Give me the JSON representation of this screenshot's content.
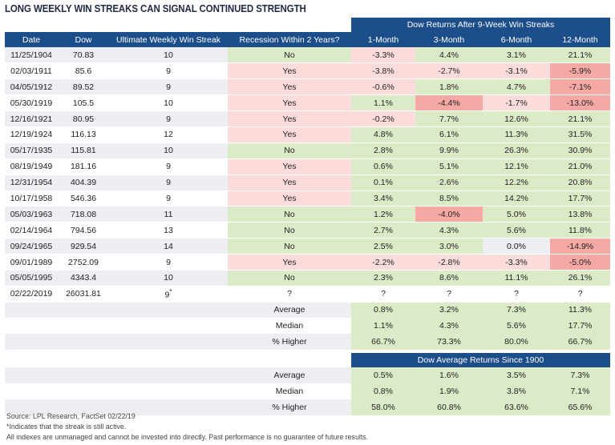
{
  "title": "LONG WEEKLY WIN STREAKS CAN SIGNAL CONTINUED STRENGTH",
  "group_header": "Dow Returns After 9-Week Win Streaks",
  "columns": [
    "Date",
    "Dow",
    "Ultimate Weekly Win Streak",
    "Recession Within 2 Years?",
    "1-Month",
    "3-Month",
    "6-Month",
    "12-Month"
  ],
  "rows": [
    {
      "date": "11/25/1904",
      "dow": "70.83",
      "streak": "10",
      "recession": "No",
      "m1": "-3.3%",
      "m3": "4.4%",
      "m6": "3.1%",
      "m12": "21.1%"
    },
    {
      "date": "02/03/1911",
      "dow": "85.6",
      "streak": "9",
      "recession": "Yes",
      "m1": "-3.8%",
      "m3": "-2.7%",
      "m6": "-3.1%",
      "m12": "-5.9%"
    },
    {
      "date": "04/05/1912",
      "dow": "89.52",
      "streak": "9",
      "recession": "Yes",
      "m1": "-0.6%",
      "m3": "1.8%",
      "m6": "4.7%",
      "m12": "-7.1%"
    },
    {
      "date": "05/30/1919",
      "dow": "105.5",
      "streak": "10",
      "recession": "Yes",
      "m1": "1.1%",
      "m3": "-4.4%",
      "m6": "-1.7%",
      "m12": "-13.0%"
    },
    {
      "date": "12/16/1921",
      "dow": "80.95",
      "streak": "9",
      "recession": "Yes",
      "m1": "-0.2%",
      "m3": "7.7%",
      "m6": "12.6%",
      "m12": "21.1%"
    },
    {
      "date": "12/19/1924",
      "dow": "116.13",
      "streak": "12",
      "recession": "Yes",
      "m1": "4.8%",
      "m3": "6.1%",
      "m6": "11.3%",
      "m12": "31.5%"
    },
    {
      "date": "05/17/1935",
      "dow": "115.81",
      "streak": "10",
      "recession": "No",
      "m1": "2.8%",
      "m3": "9.9%",
      "m6": "26.3%",
      "m12": "30.9%"
    },
    {
      "date": "08/19/1949",
      "dow": "181.16",
      "streak": "9",
      "recession": "Yes",
      "m1": "0.6%",
      "m3": "5.1%",
      "m6": "12.1%",
      "m12": "21.0%"
    },
    {
      "date": "12/31/1954",
      "dow": "404.39",
      "streak": "9",
      "recession": "Yes",
      "m1": "0.1%",
      "m3": "2.6%",
      "m6": "12.2%",
      "m12": "20.8%"
    },
    {
      "date": "10/17/1958",
      "dow": "546.36",
      "streak": "9",
      "recession": "Yes",
      "m1": "3.4%",
      "m3": "8.5%",
      "m6": "14.2%",
      "m12": "17.7%"
    },
    {
      "date": "05/03/1963",
      "dow": "718.08",
      "streak": "11",
      "recession": "No",
      "m1": "1.2%",
      "m3": "-4.0%",
      "m6": "5.0%",
      "m12": "13.8%"
    },
    {
      "date": "02/14/1964",
      "dow": "794.56",
      "streak": "13",
      "recession": "No",
      "m1": "2.7%",
      "m3": "4.3%",
      "m6": "5.6%",
      "m12": "11.8%"
    },
    {
      "date": "09/24/1965",
      "dow": "929.54",
      "streak": "14",
      "recession": "No",
      "m1": "2.5%",
      "m3": "3.0%",
      "m6": "0.0%",
      "m12": "-14.9%"
    },
    {
      "date": "09/01/1989",
      "dow": "2752.09",
      "streak": "9",
      "recession": "Yes",
      "m1": "-2.2%",
      "m3": "-2.8%",
      "m6": "-3.3%",
      "m12": "-5.0%"
    },
    {
      "date": "05/05/1995",
      "dow": "4343.4",
      "streak": "10",
      "recession": "No",
      "m1": "2.3%",
      "m3": "8.6%",
      "m6": "11.1%",
      "m12": "26.1%"
    },
    {
      "date": "02/22/2019",
      "dow": "26031.81",
      "streak": "9",
      "streak_mark": "*",
      "recession": "?",
      "m1": "?",
      "m3": "?",
      "m6": "?",
      "m12": "?"
    }
  ],
  "stats_streak": [
    {
      "label": "Average",
      "m1": "0.8%",
      "m3": "3.2%",
      "m6": "7.3%",
      "m12": "11.3%"
    },
    {
      "label": "Median",
      "m1": "1.1%",
      "m3": "4.3%",
      "m6": "5.6%",
      "m12": "17.7%"
    },
    {
      "label": "% Higher",
      "m1": "66.7%",
      "m3": "73.3%",
      "m6": "80.0%",
      "m12": "66.7%"
    }
  ],
  "since_header": "Dow Average Returns Since 1900",
  "stats_since": [
    {
      "label": "Average",
      "m1": "0.5%",
      "m3": "1.6%",
      "m6": "3.5%",
      "m12": "7.3%"
    },
    {
      "label": "Median",
      "m1": "0.8%",
      "m3": "1.9%",
      "m6": "3.8%",
      "m12": "7.1%"
    },
    {
      "label": "% Higher",
      "m1": "58.0%",
      "m3": "60.8%",
      "m6": "63.6%",
      "m12": "65.6%"
    }
  ],
  "footnotes": {
    "source": "Source: LPL Research, FactSet   02/22/19",
    "asterisk": "*Indicates that the streak is still active.",
    "disclaimer": "All indexes are unmanaged and cannot be invested into directly. Past performance is no guarantee of future results."
  },
  "colors": {
    "header": "#1c4e8a",
    "positive": "#dcebc7",
    "negative_light": "#fcdcda",
    "negative_strong": "#f6a8a4",
    "stripe": "#eceef1"
  }
}
